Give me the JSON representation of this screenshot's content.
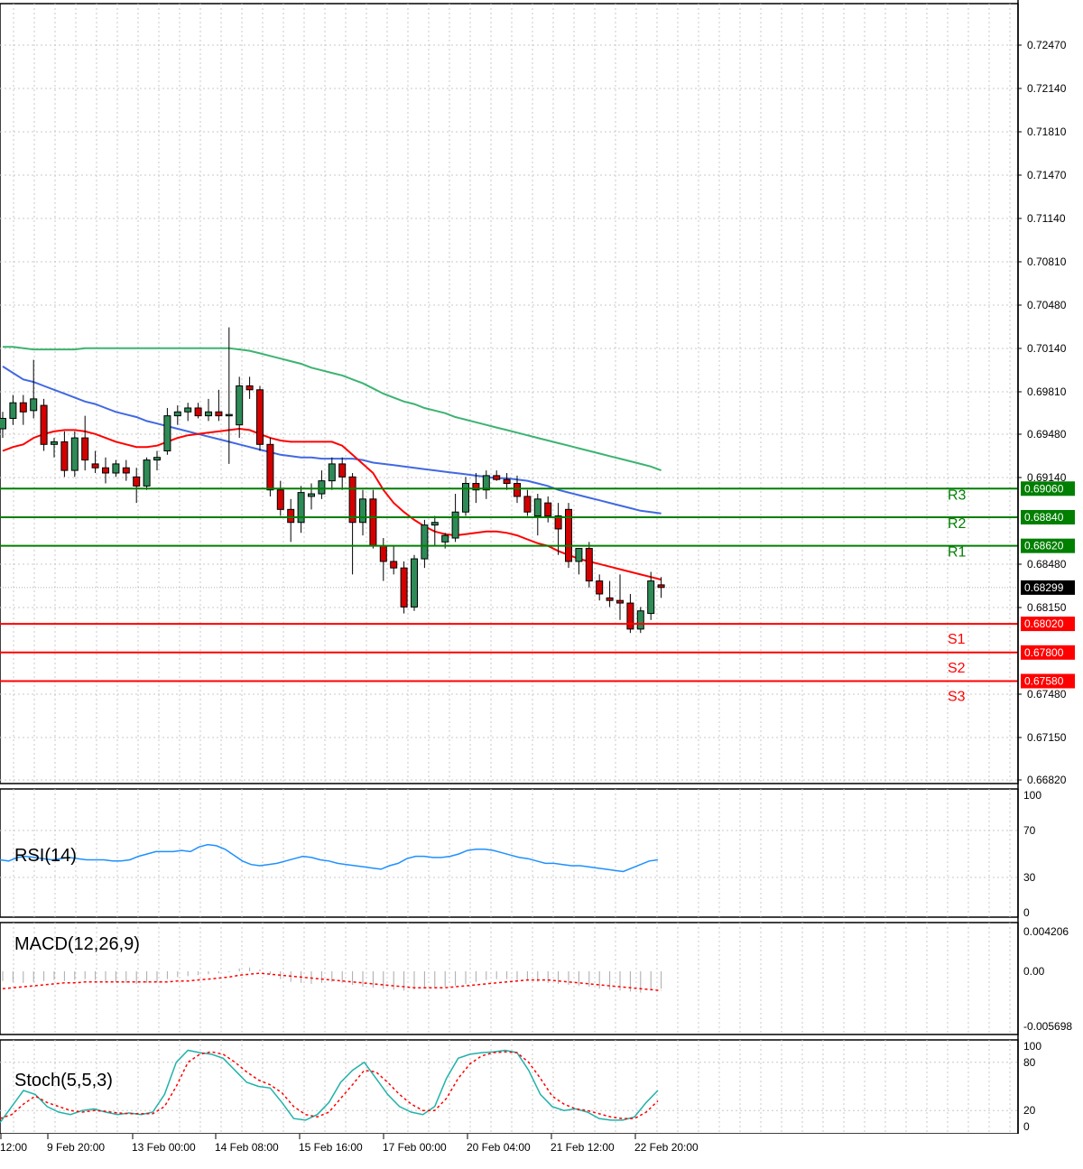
{
  "chart_data": [
    {
      "type": "candlestick",
      "panel": "price",
      "y_ticks": [
        "0.72470",
        "0.72140",
        "0.71810",
        "0.71470",
        "0.71140",
        "0.70810",
        "0.70480",
        "0.70140",
        "0.69810",
        "0.69480",
        "0.69140",
        "0.68480",
        "0.68150",
        "0.67480",
        "0.67150",
        "0.66820"
      ],
      "ylim": [
        0.6682,
        0.728
      ],
      "current_price": 0.68299,
      "current_price_label": "0.68299",
      "levels": [
        {
          "name": "R3",
          "value": 0.6906,
          "value_label": "0.69060",
          "color": "#007f00"
        },
        {
          "name": "R2",
          "value": 0.6884,
          "value_label": "0.68840",
          "color": "#007f00"
        },
        {
          "name": "R1",
          "value": 0.6862,
          "value_label": "0.68620",
          "color": "#007f00"
        },
        {
          "name": "S1",
          "value": 0.6802,
          "value_label": "0.68020",
          "color": "#ff0000"
        },
        {
          "name": "S2",
          "value": 0.678,
          "value_label": "0.67800",
          "color": "#ff0000"
        },
        {
          "name": "S3",
          "value": 0.6758,
          "value_label": "0.67580",
          "color": "#ff0000"
        }
      ],
      "candles": [
        [
          0.6952,
          0.6965,
          0.6945,
          0.696
        ],
        [
          0.696,
          0.6978,
          0.6955,
          0.6972
        ],
        [
          0.6972,
          0.6978,
          0.6955,
          0.6965
        ],
        [
          0.6966,
          0.7005,
          0.696,
          0.6975
        ],
        [
          0.697,
          0.6975,
          0.6935,
          0.694
        ],
        [
          0.694,
          0.6945,
          0.693,
          0.6942
        ],
        [
          0.6942,
          0.695,
          0.6915,
          0.692
        ],
        [
          0.692,
          0.695,
          0.6915,
          0.6945
        ],
        [
          0.6945,
          0.6962,
          0.692,
          0.6928
        ],
        [
          0.6925,
          0.6935,
          0.6918,
          0.6922
        ],
        [
          0.6922,
          0.693,
          0.691,
          0.6918
        ],
        [
          0.6918,
          0.6928,
          0.6915,
          0.6925
        ],
        [
          0.6922,
          0.6928,
          0.6912,
          0.6918
        ],
        [
          0.6915,
          0.6922,
          0.6895,
          0.6908
        ],
        [
          0.6908,
          0.693,
          0.6905,
          0.6928
        ],
        [
          0.6928,
          0.6935,
          0.692,
          0.693
        ],
        [
          0.6935,
          0.6968,
          0.6932,
          0.6962
        ],
        [
          0.6962,
          0.697,
          0.6955,
          0.6965
        ],
        [
          0.6965,
          0.6972,
          0.6958,
          0.6968
        ],
        [
          0.6968,
          0.6972,
          0.696,
          0.6962
        ],
        [
          0.6962,
          0.6975,
          0.6958,
          0.6965
        ],
        [
          0.6965,
          0.6982,
          0.6958,
          0.6962
        ],
        [
          0.6962,
          0.703,
          0.6925,
          0.6963
        ],
        [
          0.6955,
          0.6992,
          0.6945,
          0.6985
        ],
        [
          0.6985,
          0.6992,
          0.6975,
          0.6982
        ],
        [
          0.6982,
          0.6985,
          0.6935,
          0.694
        ],
        [
          0.694,
          0.6945,
          0.69,
          0.6905
        ],
        [
          0.6905,
          0.6912,
          0.6885,
          0.689
        ],
        [
          0.689,
          0.6898,
          0.6865,
          0.688
        ],
        [
          0.688,
          0.6908,
          0.6872,
          0.6903
        ],
        [
          0.69,
          0.691,
          0.689,
          0.6902
        ],
        [
          0.6902,
          0.692,
          0.6898,
          0.6912
        ],
        [
          0.6912,
          0.693,
          0.6905,
          0.6925
        ],
        [
          0.6925,
          0.693,
          0.6905,
          0.6915
        ],
        [
          0.6915,
          0.6918,
          0.684,
          0.688
        ],
        [
          0.688,
          0.6905,
          0.687,
          0.6898
        ],
        [
          0.6898,
          0.6905,
          0.686,
          0.6862
        ],
        [
          0.6862,
          0.6868,
          0.6835,
          0.685
        ],
        [
          0.685,
          0.6862,
          0.684,
          0.6845
        ],
        [
          0.6845,
          0.685,
          0.681,
          0.6815
        ],
        [
          0.6815,
          0.6855,
          0.6812,
          0.6852
        ],
        [
          0.6852,
          0.6882,
          0.6845,
          0.6878
        ],
        [
          0.6878,
          0.6885,
          0.6862,
          0.688
        ],
        [
          0.6865,
          0.6872,
          0.686,
          0.687
        ],
        [
          0.6868,
          0.6902,
          0.6865,
          0.6888
        ],
        [
          0.6888,
          0.6915,
          0.6885,
          0.691
        ],
        [
          0.691,
          0.6918,
          0.6895,
          0.6905
        ],
        [
          0.6905,
          0.692,
          0.6898,
          0.6916
        ],
        [
          0.6916,
          0.692,
          0.6912,
          0.6913
        ],
        [
          0.6913,
          0.6918,
          0.6905,
          0.691
        ],
        [
          0.691,
          0.6916,
          0.6895,
          0.69
        ],
        [
          0.69,
          0.6905,
          0.6885,
          0.6888
        ],
        [
          0.6885,
          0.6902,
          0.687,
          0.6898
        ],
        [
          0.6895,
          0.69,
          0.688,
          0.6885
        ],
        [
          0.6885,
          0.6895,
          0.6855,
          0.6875
        ],
        [
          0.689,
          0.6895,
          0.6845,
          0.685
        ],
        [
          0.685,
          0.686,
          0.684,
          0.686
        ],
        [
          0.686,
          0.6865,
          0.683,
          0.6835
        ],
        [
          0.6835,
          0.684,
          0.682,
          0.6825
        ],
        [
          0.6822,
          0.6835,
          0.6815,
          0.682
        ],
        [
          0.682,
          0.684,
          0.6805,
          0.6818
        ],
        [
          0.6818,
          0.6825,
          0.6795,
          0.6798
        ],
        [
          0.6798,
          0.6815,
          0.6795,
          0.6812
        ],
        [
          0.681,
          0.6842,
          0.6805,
          0.6835
        ],
        [
          0.6832,
          0.6838,
          0.6822,
          0.683
        ]
      ],
      "ma_fast": [
        0.6935,
        0.6938,
        0.694,
        0.6945,
        0.6948,
        0.695,
        0.6951,
        0.6951,
        0.695,
        0.6948,
        0.6945,
        0.6942,
        0.694,
        0.6938,
        0.6938,
        0.6939,
        0.6942,
        0.6945,
        0.6947,
        0.6948,
        0.6949,
        0.695,
        0.6951,
        0.6952,
        0.6951,
        0.6948,
        0.6945,
        0.6943,
        0.6942,
        0.6942,
        0.6942,
        0.6942,
        0.6942,
        0.6939,
        0.6932,
        0.6925,
        0.6918,
        0.6905,
        0.6895,
        0.6888,
        0.6882,
        0.6877,
        0.6873,
        0.6871,
        0.687,
        0.6871,
        0.6872,
        0.6873,
        0.6873,
        0.6872,
        0.687,
        0.6867,
        0.6864,
        0.6862,
        0.6858,
        0.6855,
        0.6852,
        0.685,
        0.6848,
        0.6846,
        0.6844,
        0.6842,
        0.684,
        0.6838,
        0.6836
      ],
      "ma_mid": [
        0.7,
        0.6995,
        0.699,
        0.6988,
        0.6985,
        0.6982,
        0.6979,
        0.6976,
        0.6973,
        0.6971,
        0.6968,
        0.6965,
        0.6963,
        0.6961,
        0.6958,
        0.6956,
        0.6954,
        0.6952,
        0.695,
        0.6948,
        0.6946,
        0.6944,
        0.6942,
        0.694,
        0.6938,
        0.6936,
        0.6934,
        0.6932,
        0.6931,
        0.693,
        0.693,
        0.6929,
        0.6929,
        0.6929,
        0.6929,
        0.6928,
        0.6926,
        0.6925,
        0.6924,
        0.6923,
        0.6922,
        0.6921,
        0.692,
        0.6919,
        0.6918,
        0.6917,
        0.6916,
        0.6915,
        0.6914,
        0.6914,
        0.6913,
        0.6912,
        0.691,
        0.6908,
        0.6905,
        0.6903,
        0.6901,
        0.6899,
        0.6897,
        0.6895,
        0.6893,
        0.6891,
        0.6889,
        0.6888,
        0.6887
      ],
      "ma_slow": [
        0.7015,
        0.7015,
        0.7014,
        0.7013,
        0.7013,
        0.7013,
        0.7013,
        0.7013,
        0.7014,
        0.7014,
        0.7014,
        0.7014,
        0.7014,
        0.7014,
        0.7014,
        0.7014,
        0.7014,
        0.7014,
        0.7014,
        0.7014,
        0.7014,
        0.7014,
        0.7014,
        0.7013,
        0.7012,
        0.701,
        0.7008,
        0.7006,
        0.7004,
        0.7002,
        0.6999,
        0.6997,
        0.6995,
        0.6993,
        0.699,
        0.6987,
        0.6983,
        0.6979,
        0.6976,
        0.6973,
        0.6971,
        0.6968,
        0.6966,
        0.6964,
        0.6961,
        0.6959,
        0.6957,
        0.6955,
        0.6953,
        0.6951,
        0.6949,
        0.6947,
        0.6945,
        0.6943,
        0.6941,
        0.6939,
        0.6937,
        0.6935,
        0.6933,
        0.6931,
        0.6929,
        0.6927,
        0.6925,
        0.6923,
        0.692
      ]
    },
    {
      "type": "line",
      "panel": "rsi",
      "title": "RSI(14)",
      "y_ticks": [
        "100",
        "70",
        "30",
        "0"
      ],
      "ylim": [
        0,
        100
      ],
      "color": "#1e90ff",
      "values": [
        45,
        44,
        47,
        48,
        47,
        46,
        45,
        46,
        47,
        46,
        45,
        45,
        45,
        44,
        44,
        45,
        48,
        50,
        52,
        52,
        52,
        53,
        52,
        56,
        58,
        57,
        54,
        49,
        44,
        41,
        40,
        41,
        42,
        44,
        46,
        48,
        47,
        45,
        44,
        42,
        41,
        40,
        39,
        38,
        37,
        40,
        42,
        46,
        48,
        48,
        47,
        47,
        48,
        50,
        53,
        54,
        54,
        53,
        51,
        49,
        47,
        46,
        44,
        42,
        42,
        41,
        40,
        40,
        39,
        38,
        37,
        36,
        35,
        38,
        41,
        44,
        45
      ]
    },
    {
      "type": "bar",
      "panel": "macd",
      "title": "MACD(12,26,9)",
      "y_ticks": [
        "0.004206",
        "0.00",
        "-0.005698"
      ],
      "ylim": [
        -0.005698,
        0.004206
      ],
      "series": [
        {
          "values": [
            -0.001,
            -0.0011,
            -0.0012,
            -0.0011,
            -0.001,
            -0.0009,
            -0.001,
            -0.0009,
            -0.0008,
            -0.0009,
            -0.001,
            -0.0011,
            -0.0012,
            -0.0013,
            -0.0012,
            -0.0011,
            -0.0008,
            -0.0006,
            -0.0005,
            -0.0004,
            -0.0003,
            -0.0002,
            -0.0001,
            0.0003,
            0.0004,
            0.0002,
            -0.0003,
            -0.0008,
            -0.0011,
            -0.0012,
            -0.0013,
            -0.0012,
            -0.0011,
            -0.0012,
            -0.0014,
            -0.0016,
            -0.0017,
            -0.0018,
            -0.0019,
            -0.002,
            -0.0019,
            -0.0018,
            -0.0017,
            -0.0016,
            -0.0015,
            -0.0013,
            -0.0011,
            -0.0009,
            -0.0008,
            -0.0008,
            -0.0009,
            -0.001,
            -0.0011,
            -0.0012,
            -0.0013,
            -0.0014,
            -0.0015,
            -0.0016,
            -0.0018,
            -0.0019,
            -0.002,
            -0.0021,
            -0.0022,
            -0.002,
            -0.0018
          ]
        },
        {
          "values": [
            -0.0018,
            -0.0017,
            -0.0016,
            -0.0015,
            -0.0014,
            -0.0013,
            -0.0012,
            -0.0012,
            -0.0011,
            -0.0011,
            -0.0011,
            -0.0011,
            -0.0011,
            -0.0011,
            -0.0011,
            -0.0011,
            -0.0011,
            -0.001,
            -0.001,
            -0.0009,
            -0.0008,
            -0.0007,
            -0.0006,
            -0.0004,
            -0.0003,
            -0.0002,
            -0.0003,
            -0.0004,
            -0.0005,
            -0.0006,
            -0.0007,
            -0.0008,
            -0.0009,
            -0.001,
            -0.0011,
            -0.0012,
            -0.0013,
            -0.0014,
            -0.0015,
            -0.0016,
            -0.0017,
            -0.0017,
            -0.0017,
            -0.0017,
            -0.0016,
            -0.0015,
            -0.0014,
            -0.0013,
            -0.0012,
            -0.0011,
            -0.001,
            -0.0009,
            -0.0009,
            -0.0009,
            -0.001,
            -0.0011,
            -0.0012,
            -0.0013,
            -0.0014,
            -0.0015,
            -0.0016,
            -0.0017,
            -0.0018,
            -0.0019,
            -0.002
          ]
        }
      ]
    },
    {
      "type": "line",
      "panel": "stoch",
      "title": "Stoch(5,5,3)",
      "y_ticks": [
        "100",
        "80",
        "20",
        "0"
      ],
      "ylim": [
        0,
        100
      ],
      "series": [
        {
          "values": [
            5,
            25,
            45,
            40,
            25,
            18,
            15,
            20,
            22,
            18,
            15,
            17,
            15,
            18,
            40,
            80,
            95,
            92,
            90,
            85,
            70,
            55,
            50,
            48,
            30,
            10,
            8,
            15,
            30,
            55,
            70,
            80,
            60,
            40,
            25,
            18,
            15,
            25,
            60,
            85,
            90,
            92,
            93,
            95,
            92,
            70,
            40,
            25,
            20,
            22,
            18,
            10,
            8,
            8,
            12,
            30,
            45
          ]
        },
        {
          "values": [
            10,
            15,
            28,
            38,
            30,
            25,
            20,
            18,
            20,
            19,
            17,
            16,
            16,
            16,
            25,
            50,
            80,
            90,
            93,
            90,
            80,
            68,
            58,
            52,
            42,
            25,
            15,
            12,
            18,
            35,
            52,
            70,
            68,
            55,
            40,
            28,
            20,
            20,
            35,
            60,
            78,
            88,
            92,
            93,
            92,
            80,
            60,
            38,
            28,
            22,
            20,
            16,
            12,
            10,
            10,
            18,
            32
          ]
        }
      ]
    },
    {
      "type": "axis",
      "panel": "time",
      "x_ticks": [
        "12:00",
        "9 Feb 20:00",
        "13 Feb 00:00",
        "14 Feb 08:00",
        "15 Feb 16:00",
        "17 Feb 00:00",
        "20 Feb 04:00",
        "21 Feb 12:00",
        "22 Feb 20:00"
      ]
    }
  ]
}
